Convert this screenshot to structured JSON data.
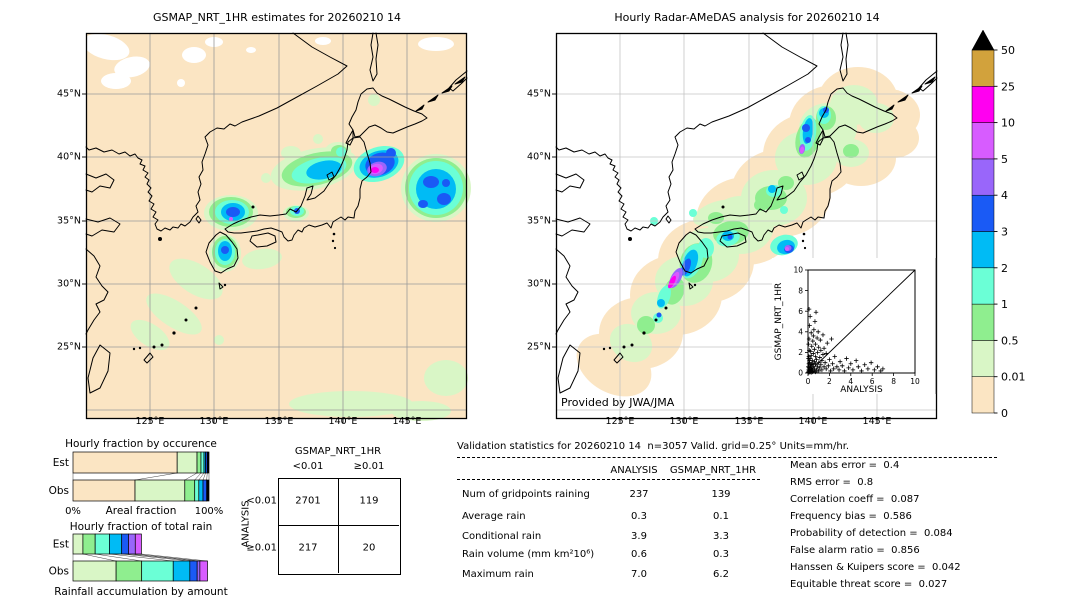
{
  "figure": {
    "palette": {
      "level_0": "#fbe5c3",
      "level_0p01": "#d9f6c6",
      "level_0p5": "#8fee8f",
      "level_1": "#6bffd6",
      "level_2": "#00bbf5",
      "level_3": "#1a5af5",
      "level_4": "#9966fa",
      "level_5": "#d75cff",
      "level_10": "#ff00f0",
      "level_25": "#d2a23c",
      "overflow": "#000000",
      "grid_left_map": "#9a9a9a",
      "grid_right_map": "#c4c4c4"
    }
  },
  "chart_data": [
    {
      "type": "map",
      "id": "gsmap-map",
      "title": "GSMAP_NRT_1HR estimates for 20260210 14",
      "x_tick_labels": [
        "125°E",
        "130°E",
        "135°E",
        "140°E",
        "145°E"
      ],
      "y_tick_labels": [
        "45°N",
        "40°N",
        "35°N",
        "30°N",
        "25°N"
      ],
      "region": "Japan and surrounding seas",
      "units": "mm/hr"
    },
    {
      "type": "map",
      "id": "radar-map",
      "title": "Hourly Radar-AMeDAS analysis for 20260210 14",
      "x_tick_labels": [
        "125°E",
        "130°E",
        "135°E",
        "140°E",
        "145°E"
      ],
      "y_tick_labels": [
        "45°N",
        "40°N",
        "35°N",
        "30°N",
        "25°N"
      ],
      "credit": "Provided by JWA/JMA",
      "region": "Japan and surrounding seas",
      "units": "mm/hr"
    },
    {
      "type": "scatter",
      "id": "scatter-inset",
      "xlabel": "ANALYSIS",
      "ylabel": "GSMAP_NRT_1HR",
      "xlim": [
        0,
        10
      ],
      "ylim": [
        0,
        10
      ],
      "x_ticks": [
        "0",
        "2",
        "4",
        "6",
        "8",
        "10"
      ],
      "y_ticks": [
        "0",
        "2",
        "4",
        "6",
        "8",
        "10"
      ],
      "identity_line": true,
      "marker": "+",
      "points": [
        [
          0.02,
          0.1
        ],
        [
          0.06,
          0.3
        ],
        [
          0.03,
          0.6
        ],
        [
          0.12,
          0.08
        ],
        [
          0.18,
          0.35
        ],
        [
          0.25,
          0.15
        ],
        [
          0.08,
          0.9
        ],
        [
          0.22,
          0.55
        ],
        [
          0.3,
          0.05
        ],
        [
          0.14,
          1.2
        ],
        [
          0.05,
          1.4
        ],
        [
          0.28,
          0.85
        ],
        [
          0.35,
          0.4
        ],
        [
          0.4,
          0.9
        ],
        [
          0.45,
          0.15
        ],
        [
          0.05,
          0.05
        ],
        [
          0.1,
          0.2
        ],
        [
          0.1,
          0.5
        ],
        [
          0.15,
          1.0
        ],
        [
          0.2,
          0.1
        ],
        [
          0.2,
          0.7
        ],
        [
          0.2,
          1.4
        ],
        [
          0.25,
          2.1
        ],
        [
          0.3,
          0.3
        ],
        [
          0.3,
          0.9
        ],
        [
          0.3,
          1.7
        ],
        [
          0.35,
          2.6
        ],
        [
          0.4,
          0.1
        ],
        [
          0.4,
          0.6
        ],
        [
          0.4,
          1.2
        ],
        [
          0.45,
          3.1
        ],
        [
          0.5,
          0.2
        ],
        [
          0.5,
          0.8
        ],
        [
          0.5,
          1.9
        ],
        [
          0.5,
          3.6
        ],
        [
          0.55,
          4.2
        ],
        [
          0.6,
          0.4
        ],
        [
          0.6,
          1.1
        ],
        [
          0.6,
          2.3
        ],
        [
          0.65,
          5.0
        ],
        [
          0.7,
          0.1
        ],
        [
          0.7,
          0.9
        ],
        [
          0.7,
          1.6
        ],
        [
          0.7,
          2.8
        ],
        [
          0.75,
          5.9
        ],
        [
          0.8,
          0.3
        ],
        [
          0.8,
          1.3
        ],
        [
          0.85,
          3.4
        ],
        [
          0.9,
          0.6
        ],
        [
          0.9,
          2.0
        ],
        [
          0.95,
          4.0
        ],
        [
          1.0,
          0.2
        ],
        [
          1.0,
          1.0
        ],
        [
          1.0,
          2.5
        ],
        [
          1.1,
          0.5
        ],
        [
          1.1,
          1.5
        ],
        [
          1.15,
          3.2
        ],
        [
          1.2,
          0.8
        ],
        [
          1.2,
          2.2
        ],
        [
          1.3,
          0.3
        ],
        [
          1.3,
          1.2
        ],
        [
          1.4,
          1.8
        ],
        [
          1.4,
          3.7
        ],
        [
          1.5,
          0.6
        ],
        [
          1.5,
          2.4
        ],
        [
          1.6,
          1.0
        ],
        [
          1.7,
          0.4
        ],
        [
          1.7,
          1.9
        ],
        [
          1.8,
          2.9
        ],
        [
          1.9,
          0.7
        ],
        [
          2.0,
          1.3
        ],
        [
          2.1,
          0.2
        ],
        [
          2.2,
          3.3
        ],
        [
          2.3,
          0.9
        ],
        [
          2.4,
          0.4
        ],
        [
          2.5,
          1.6
        ],
        [
          2.7,
          0.6
        ],
        [
          2.9,
          0.3
        ],
        [
          3.0,
          1.1
        ],
        [
          3.2,
          0.7
        ],
        [
          3.4,
          0.2
        ],
        [
          3.6,
          1.4
        ],
        [
          3.8,
          0.5
        ],
        [
          4.0,
          0.9
        ],
        [
          4.2,
          0.3
        ],
        [
          4.5,
          1.2
        ],
        [
          4.7,
          0.6
        ],
        [
          5.0,
          0.2
        ],
        [
          5.3,
          0.8
        ],
        [
          5.6,
          0.4
        ],
        [
          5.9,
          1.0
        ],
        [
          6.2,
          0.3
        ],
        [
          6.5,
          0.6
        ],
        [
          6.8,
          0.2
        ],
        [
          7.0,
          0.4
        ],
        [
          0.1,
          6.2
        ],
        [
          0.2,
          5.5
        ],
        [
          0.15,
          4.6
        ],
        [
          0.3,
          3.9
        ],
        [
          0.1,
          3.3
        ],
        [
          0.05,
          2.8
        ],
        [
          0.12,
          2.2
        ],
        [
          0.08,
          1.6
        ]
      ]
    },
    {
      "type": "bar",
      "id": "occurrence-chart",
      "stacked": true,
      "orientation": "horizontal",
      "title": "Hourly fraction by occurence",
      "rows": [
        "Est",
        "Obs"
      ],
      "xlabel": "Areal fraction",
      "x_tick_labels": [
        "0%",
        "100%"
      ],
      "xlim": [
        0,
        100
      ],
      "bins": [
        "0–0.01",
        "0.01–0.5",
        "0.5–1",
        "1–2",
        "2–3",
        "3–4",
        "≥4"
      ],
      "colors": [
        "#fbe5c3",
        "#d9f6c6",
        "#8fee8f",
        "#6bffd6",
        "#00bbf5",
        "#1a5af5",
        "#000000"
      ],
      "series": [
        {
          "name": "Est",
          "values": [
            76.6,
            14.6,
            2.9,
            2.2,
            1.2,
            1.2,
            1.3
          ]
        },
        {
          "name": "Obs",
          "values": [
            45.6,
            36.6,
            7.3,
            3.0,
            3.1,
            2.7,
            1.7
          ]
        }
      ]
    },
    {
      "type": "bar",
      "id": "totalrain-chart",
      "stacked": true,
      "orientation": "horizontal",
      "title": "Hourly fraction of total rain",
      "rows": [
        "Est",
        "Obs"
      ],
      "xlabel": "Rainfall accumulation by amount",
      "xlim": [
        0,
        100
      ],
      "bins": [
        "0.01–0.5",
        "0.5–1",
        "1–2",
        "2–3",
        "3–4",
        "4–5",
        "5–10"
      ],
      "colors": [
        "#d9f6c6",
        "#8fee8f",
        "#6bffd6",
        "#00bbf5",
        "#1a5af5",
        "#9966fa",
        "#d75cff"
      ],
      "series": [
        {
          "name": "Est",
          "values": [
            7.3,
            9.0,
            10.5,
            9.0,
            5.0,
            5.0,
            4.5
          ]
        },
        {
          "name": "Obs",
          "values": [
            31.7,
            18.8,
            23.2,
            12.2,
            5.4,
            2.0,
            5.6
          ]
        }
      ]
    },
    {
      "type": "table",
      "id": "contingency-table",
      "col_title": "GSMAP_NRT_1HR",
      "row_title": "ANALYSIS",
      "col_labels": [
        "<0.01",
        "≥0.01"
      ],
      "row_labels": [
        "<0.01",
        "≥0.01"
      ],
      "values": [
        [
          "2701",
          "119"
        ],
        [
          "217",
          "20"
        ]
      ]
    },
    {
      "type": "table",
      "id": "validation-stats",
      "title": "Validation statistics for 20260210 14  n=3057 Valid. grid=0.25° Units=mm/hr.",
      "columns": [
        "ANALYSIS",
        "GSMAP_NRT_1HR"
      ],
      "rows": [
        {
          "label": "Num of gridpoints raining",
          "values": [
            "237",
            "139"
          ]
        },
        {
          "label": "Average rain",
          "values": [
            "0.3",
            "0.1"
          ]
        },
        {
          "label": "Conditional rain",
          "values": [
            "3.9",
            "3.3"
          ]
        },
        {
          "label": "Rain volume (mm km²10⁶)",
          "values": [
            "0.6",
            "0.3"
          ]
        },
        {
          "label": "Maximum rain",
          "values": [
            "7.0",
            "6.2"
          ]
        }
      ]
    },
    {
      "type": "list",
      "id": "skill-scores",
      "items": [
        {
          "label": "Mean abs error",
          "value": "0.4"
        },
        {
          "label": "RMS error",
          "value": "0.8"
        },
        {
          "label": "Correlation coeff",
          "value": "0.087"
        },
        {
          "label": "Frequency bias",
          "value": "0.586"
        },
        {
          "label": "Probability of detection",
          "value": "0.084"
        },
        {
          "label": "False alarm ratio",
          "value": "0.856"
        },
        {
          "label": "Hanssen & Kuipers score",
          "value": "0.042"
        },
        {
          "label": "Equitable threat score",
          "value": "0.027"
        }
      ]
    },
    {
      "type": "colorbar",
      "id": "colorbar",
      "tick_labels": [
        "0",
        "0.01",
        "0.5",
        "1",
        "2",
        "3",
        "4",
        "5",
        "10",
        "25",
        "50"
      ],
      "colors": [
        "#fbe5c3",
        "#d9f6c6",
        "#8fee8f",
        "#6bffd6",
        "#00bbf5",
        "#1a5af5",
        "#9966fa",
        "#d75cff",
        "#ff00f0",
        "#d2a23c"
      ],
      "overflow_color": "#000000"
    }
  ]
}
